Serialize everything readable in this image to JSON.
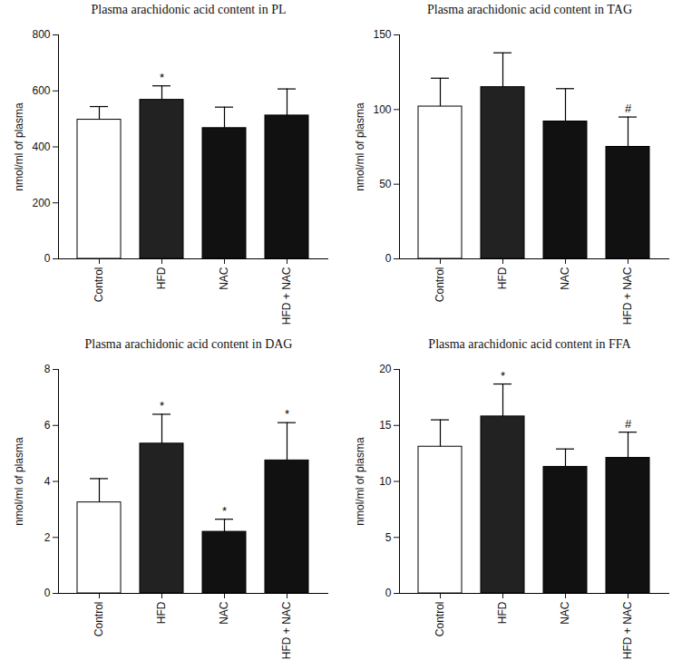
{
  "chart_data": [
    {
      "type": "bar",
      "title": "Plasma arachidonic acid content in PL",
      "y_label": "nmol/ml of plasma",
      "categories": [
        "Control",
        "HFD",
        "NAC",
        "HFD + NAC"
      ],
      "values": [
        497,
        568,
        467,
        512
      ],
      "error": [
        47,
        50,
        75,
        95
      ],
      "significance": [
        null,
        "*",
        null,
        null
      ],
      "colors": [
        "#ffffff",
        "#222222",
        "#111111",
        "#111111"
      ],
      "ylim": [
        0,
        800
      ],
      "yticks": [
        0,
        200,
        400,
        600,
        800
      ]
    },
    {
      "type": "bar",
      "title": "Plasma arachidonic acid content in TAG",
      "y_label": "nmol/ml of plasma",
      "categories": [
        "Control",
        "HFD",
        "NAC",
        "HFD + NAC"
      ],
      "values": [
        102,
        115,
        92,
        75
      ],
      "error": [
        19,
        23,
        22,
        20
      ],
      "significance": [
        null,
        null,
        null,
        "#"
      ],
      "colors": [
        "#ffffff",
        "#222222",
        "#111111",
        "#111111"
      ],
      "ylim": [
        0,
        150
      ],
      "yticks": [
        0,
        50,
        100,
        150
      ]
    },
    {
      "type": "bar",
      "title": "Plasma arachidonic acid content in DAG",
      "y_label": "nmol/ml of plasma",
      "categories": [
        "Control",
        "HFD",
        "NAC",
        "HFD + NAC"
      ],
      "values": [
        3.25,
        5.35,
        2.2,
        4.75
      ],
      "error": [
        0.85,
        1.05,
        0.45,
        1.35
      ],
      "significance": [
        null,
        "*",
        "*",
        "*"
      ],
      "colors": [
        "#ffffff",
        "#222222",
        "#111111",
        "#111111"
      ],
      "ylim": [
        0,
        8
      ],
      "yticks": [
        0,
        2,
        4,
        6,
        8
      ]
    },
    {
      "type": "bar",
      "title": "Plasma arachidonic acid content in FFA",
      "y_label": "nmol/ml of plasma",
      "categories": [
        "Control",
        "HFD",
        "NAC",
        "HFD + NAC"
      ],
      "values": [
        13.1,
        15.8,
        11.3,
        12.1
      ],
      "error": [
        2.4,
        2.9,
        1.6,
        2.3
      ],
      "significance": [
        null,
        "*",
        null,
        "#"
      ],
      "colors": [
        "#ffffff",
        "#222222",
        "#111111",
        "#111111"
      ],
      "ylim": [
        0,
        20
      ],
      "yticks": [
        0,
        5,
        10,
        15,
        20
      ]
    }
  ]
}
